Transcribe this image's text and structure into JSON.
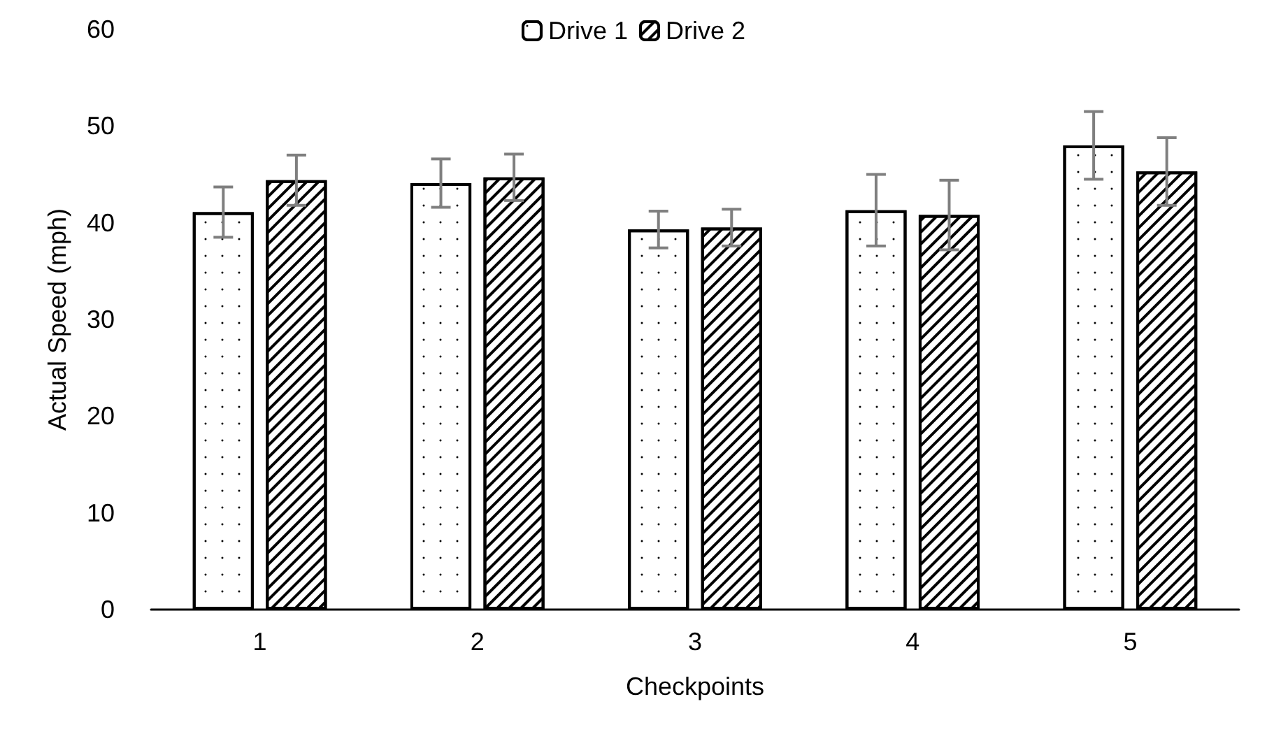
{
  "chart_data": {
    "type": "bar",
    "xlabel": "Checkpoints",
    "ylabel": "Actual Speed (mph)",
    "categories": [
      "1",
      "2",
      "3",
      "4",
      "5"
    ],
    "series": [
      {
        "name": "Drive 1",
        "color": "#ffffff",
        "values": [
          41.1,
          44.1,
          39.3,
          41.3,
          48.0
        ],
        "errors": [
          2.6,
          2.5,
          1.9,
          3.7,
          3.5
        ]
      },
      {
        "name": "Drive 2",
        "color": "#ffffff",
        "values": [
          44.4,
          44.7,
          39.5,
          40.8,
          45.3
        ],
        "errors": [
          2.6,
          2.4,
          1.9,
          3.6,
          3.5
        ]
      }
    ],
    "ylim": [
      0,
      60
    ],
    "yticks": [
      0,
      10,
      20,
      30,
      40,
      50,
      60
    ],
    "grid": false,
    "legend": "top"
  }
}
